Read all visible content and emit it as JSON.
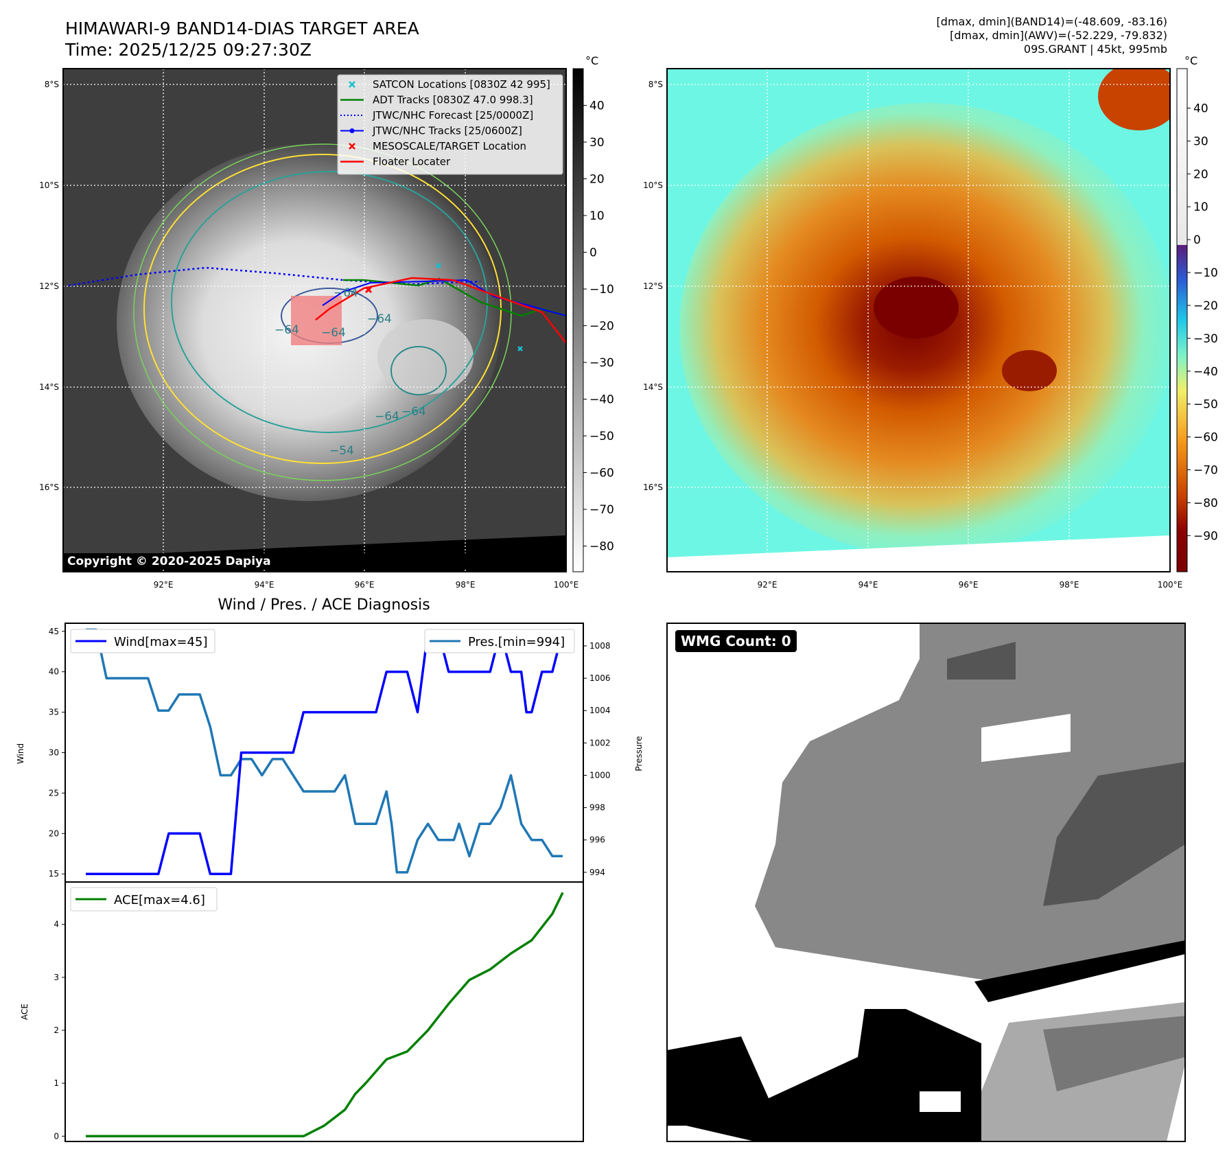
{
  "header": {
    "title_line1": "HIMAWARI-9 BAND14-DIAS TARGET AREA",
    "title_line2": "Time: 2025/12/25 09:27:30Z",
    "stats_line1": "[dmax, dmin](BAND14)=(-48.609, -83.16)",
    "stats_line2": "[dmax, dmin](AWV)=(-52.229, -79.832)",
    "stats_line3": "09S.GRANT | 45kt, 995mb"
  },
  "copyright": "Copyright © 2020-2025 Dapiya",
  "wmg_label": "WMG Count: 0",
  "colors": {
    "wind": "#0000ff",
    "pressure": "#1f77b4",
    "ace": "#008000",
    "satcon": "#17becf",
    "adt": "#008000",
    "forecast": "#0000ff",
    "jtwc_tracks": "#0000ff",
    "mesoscale": "#ff0000",
    "floater": "#ff0000"
  },
  "chart_data": [
    {
      "panel": "satellite-ir",
      "type": "map",
      "colorbar_unit": "°C",
      "colorbar_ticks": [
        "40",
        "30",
        "20",
        "10",
        "0",
        "−10",
        "−20",
        "−30",
        "−40",
        "−50",
        "−60",
        "−70",
        "−80"
      ],
      "lat_labels": [
        "8°S",
        "10°S",
        "12°S",
        "14°S",
        "16°S"
      ],
      "lon_labels": [
        "92°E",
        "94°E",
        "96°E",
        "98°E",
        "100°E"
      ],
      "contour_labels": [
        "−64",
        "−64",
        "−64",
        "−64",
        "−64",
        "−54",
        "−64"
      ],
      "legend": [
        {
          "label": "SATCON Locations [0830Z 42 995]",
          "marker": "x",
          "color": "#17becf"
        },
        {
          "label": "ADT Tracks [0830Z 47.0 998.3]",
          "marker": "line",
          "color": "#008000"
        },
        {
          "label": "JTWC/NHC Forecast [25/0000Z]",
          "marker": "dotted",
          "color": "#0000ff"
        },
        {
          "label": "JTWC/NHC Tracks [25/0600Z]",
          "marker": "line-dot",
          "color": "#0000ff"
        },
        {
          "label": "MESOSCALE/TARGET Location",
          "marker": "x",
          "color": "#ff0000"
        },
        {
          "label": "Floater Locater",
          "marker": "line",
          "color": "#ff0000"
        }
      ]
    },
    {
      "panel": "satellite-awv",
      "type": "map",
      "colorbar_unit": "°C",
      "colorbar_ticks": [
        "40",
        "30",
        "20",
        "10",
        "0",
        "−10",
        "−20",
        "−30",
        "−40",
        "−50",
        "−60",
        "−70",
        "−80",
        "−90"
      ],
      "lat_labels": [
        "8°S",
        "10°S",
        "12°S",
        "14°S",
        "16°S"
      ],
      "lon_labels": [
        "92°E",
        "94°E",
        "96°E",
        "98°E",
        "100°E"
      ]
    },
    {
      "panel": "wind-pressure",
      "type": "line",
      "title": "Wind / Pres. / ACE Diagnosis",
      "ylabel": "Wind",
      "ylabel_right": "Pressure",
      "ylim": [
        14,
        46
      ],
      "ylim_right": [
        993.4,
        1009.4
      ],
      "yticks": [
        "15",
        "20",
        "25",
        "30",
        "35",
        "40",
        "45"
      ],
      "yticks_right": [
        "994",
        "996",
        "998",
        "1000",
        "1002",
        "1004",
        "1006",
        "1008"
      ],
      "series": [
        {
          "name": "Wind[max=45]",
          "axis": "left",
          "x": [
            0,
            4,
            8,
            12,
            16,
            20,
            24,
            28,
            32,
            36,
            40,
            44,
            48,
            52,
            56,
            60,
            64,
            68,
            72,
            76,
            80,
            84,
            88,
            92,
            96,
            100,
            104,
            108,
            112,
            116,
            118,
            120,
            124,
            128,
            132,
            136,
            140,
            142,
            144,
            148,
            152,
            156,
            160,
            164,
            168,
            170,
            172,
            176,
            180,
            184
          ],
          "values": [
            15,
            15,
            15,
            15,
            15,
            15,
            15,
            15,
            20,
            20,
            20,
            20,
            15,
            15,
            15,
            30,
            30,
            30,
            30,
            30,
            30,
            35,
            35,
            35,
            35,
            35,
            35,
            35,
            35,
            40,
            40,
            40,
            40,
            35,
            45,
            45,
            40,
            40,
            40,
            40,
            40,
            40,
            45,
            40,
            40,
            35,
            35,
            40,
            40,
            45
          ]
        },
        {
          "name": "Pres.[min=994]",
          "axis": "right",
          "x": [
            0,
            4,
            8,
            12,
            16,
            20,
            24,
            28,
            32,
            36,
            40,
            44,
            48,
            52,
            56,
            60,
            64,
            68,
            72,
            76,
            80,
            84,
            88,
            92,
            96,
            100,
            104,
            108,
            112,
            116,
            118,
            120,
            124,
            128,
            132,
            136,
            140,
            142,
            144,
            148,
            152,
            156,
            160,
            164,
            168,
            172,
            176,
            180,
            184
          ],
          "values": [
            1009,
            1009,
            1006,
            1006,
            1006,
            1006,
            1006,
            1004,
            1004,
            1005,
            1005,
            1005,
            1003,
            1000,
            1000,
            1001,
            1001,
            1000,
            1001,
            1001,
            1000,
            999,
            999,
            999,
            999,
            1000,
            997,
            997,
            997,
            999,
            997,
            994,
            994,
            996,
            997,
            996,
            996,
            996,
            997,
            995,
            997,
            997,
            998,
            1000,
            997,
            996,
            996,
            995,
            995
          ]
        }
      ]
    },
    {
      "panel": "ace",
      "type": "line",
      "ylabel": "ACE",
      "ylim": [
        -0.1,
        4.8
      ],
      "yticks": [
        "0",
        "1",
        "2",
        "3",
        "4"
      ],
      "series": [
        {
          "name": "ACE[max=4.6]",
          "x": [
            0,
            20,
            40,
            60,
            68,
            76,
            84,
            92,
            100,
            104,
            108,
            116,
            124,
            132,
            136,
            140,
            148,
            156,
            164,
            172,
            180,
            184
          ],
          "values": [
            0,
            0,
            0,
            0,
            0,
            0,
            0,
            0.2,
            0.5,
            0.8,
            1.0,
            1.45,
            1.6,
            2.0,
            2.25,
            2.5,
            2.95,
            3.15,
            3.45,
            3.7,
            4.2,
            4.6
          ]
        }
      ]
    },
    {
      "panel": "wmg",
      "type": "heatmap"
    }
  ]
}
